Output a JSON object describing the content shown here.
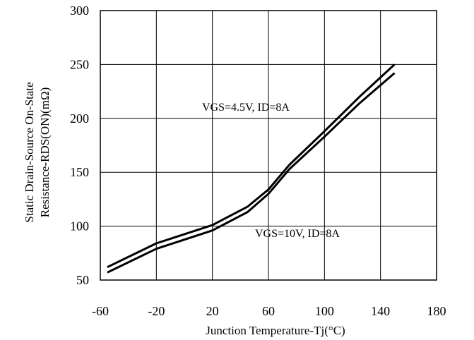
{
  "chart_data": {
    "type": "line",
    "xlabel": "Junction Temperature-Tj(°C)",
    "ylabel": [
      "Static Drain-Source On-State",
      "Resistance-RDS(ON)(mΩ)"
    ],
    "xlim": [
      -60,
      180
    ],
    "ylim": [
      50,
      300
    ],
    "x_ticks": [
      -60,
      -20,
      20,
      60,
      100,
      140,
      180
    ],
    "y_ticks": [
      50,
      100,
      150,
      200,
      250,
      300
    ],
    "grid": true,
    "annotations": [
      "VGS=4.5V, ID=8A",
      "VGS=10V, ID=8A"
    ],
    "series": [
      {
        "x": [
          -55,
          -20,
          20,
          45,
          60,
          75,
          100,
          125,
          150
        ],
        "y": [
          62,
          84,
          101,
          118,
          134,
          157,
          188,
          220,
          250
        ],
        "color": "#000000"
      },
      {
        "x": [
          -55,
          -20,
          20,
          45,
          60,
          75,
          100,
          125,
          150
        ],
        "y": [
          57,
          79,
          96,
          113,
          130,
          153,
          183,
          214,
          242
        ],
        "color": "#000000"
      }
    ]
  }
}
